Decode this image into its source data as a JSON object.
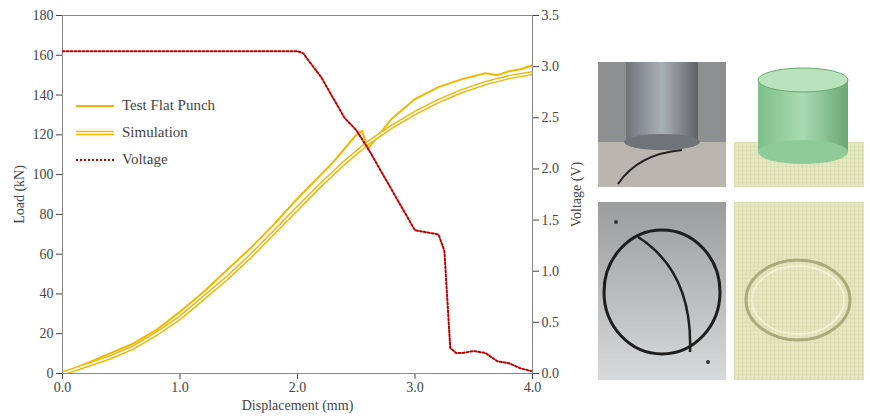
{
  "chart_data": {
    "type": "line",
    "x_label": "Displacement (mm)",
    "y_label": "Load (kN)",
    "y2_label": "Voltage (V)",
    "xlim": [
      0,
      4
    ],
    "xticks": [
      0,
      1,
      2,
      3,
      4
    ],
    "ylim": [
      0,
      180
    ],
    "yticks": [
      0,
      20,
      40,
      60,
      80,
      100,
      120,
      140,
      160,
      180
    ],
    "y2lim": [
      0,
      3.5
    ],
    "y2ticks": [
      0,
      0.5,
      1,
      1.5,
      2,
      2.5,
      3,
      3.5
    ],
    "grid": false,
    "legend": "upper left",
    "series": [
      {
        "name": "Test Flat Punch",
        "color": "#f2b600",
        "line_style": "solid",
        "x": [
          0,
          0.2,
          0.4,
          0.6,
          0.8,
          1.0,
          1.2,
          1.4,
          1.6,
          1.8,
          2.0,
          2.1,
          2.2,
          2.3,
          2.4,
          2.5,
          2.55,
          2.6,
          2.8,
          3.0,
          3.2,
          3.4,
          3.6,
          3.7,
          3.8,
          3.9,
          4.0
        ],
        "values": [
          0,
          5,
          10,
          15,
          22,
          31,
          41,
          52,
          63,
          75,
          88,
          94,
          100,
          106,
          113,
          120,
          122,
          113,
          128,
          138,
          144,
          148,
          151,
          150,
          152,
          153,
          155
        ]
      },
      {
        "name": "Simulation",
        "color": "#f2b600",
        "line_style": "double",
        "x": [
          0,
          0.2,
          0.4,
          0.6,
          0.8,
          1.0,
          1.2,
          1.4,
          1.6,
          1.8,
          2.0,
          2.2,
          2.4,
          2.6,
          2.8,
          3.0,
          3.2,
          3.4,
          3.6,
          3.8,
          4.0
        ],
        "values": [
          0,
          4,
          8,
          13,
          20,
          28,
          38,
          48,
          59,
          71,
          83,
          95,
          106,
          116,
          124,
          131,
          137,
          142,
          146,
          149,
          151
        ]
      },
      {
        "name": "Voltage",
        "color": "#c00000",
        "line_style": "dotted",
        "axis": "y2",
        "x": [
          0,
          0.5,
          1,
          1.5,
          2.0,
          2.05,
          2.1,
          2.2,
          2.3,
          2.4,
          2.5,
          2.6,
          2.7,
          2.8,
          2.9,
          3.0,
          3.1,
          3.2,
          3.25,
          3.3,
          3.35,
          3.4,
          3.5,
          3.6,
          3.7,
          3.8,
          3.9,
          4.0
        ],
        "values": [
          3.15,
          3.15,
          3.15,
          3.15,
          3.15,
          3.13,
          3.05,
          2.9,
          2.7,
          2.5,
          2.38,
          2.2,
          2.0,
          1.8,
          1.6,
          1.4,
          1.38,
          1.36,
          1.2,
          0.25,
          0.2,
          0.2,
          0.22,
          0.2,
          0.12,
          0.1,
          0.05,
          0.02
        ]
      }
    ]
  }
}
